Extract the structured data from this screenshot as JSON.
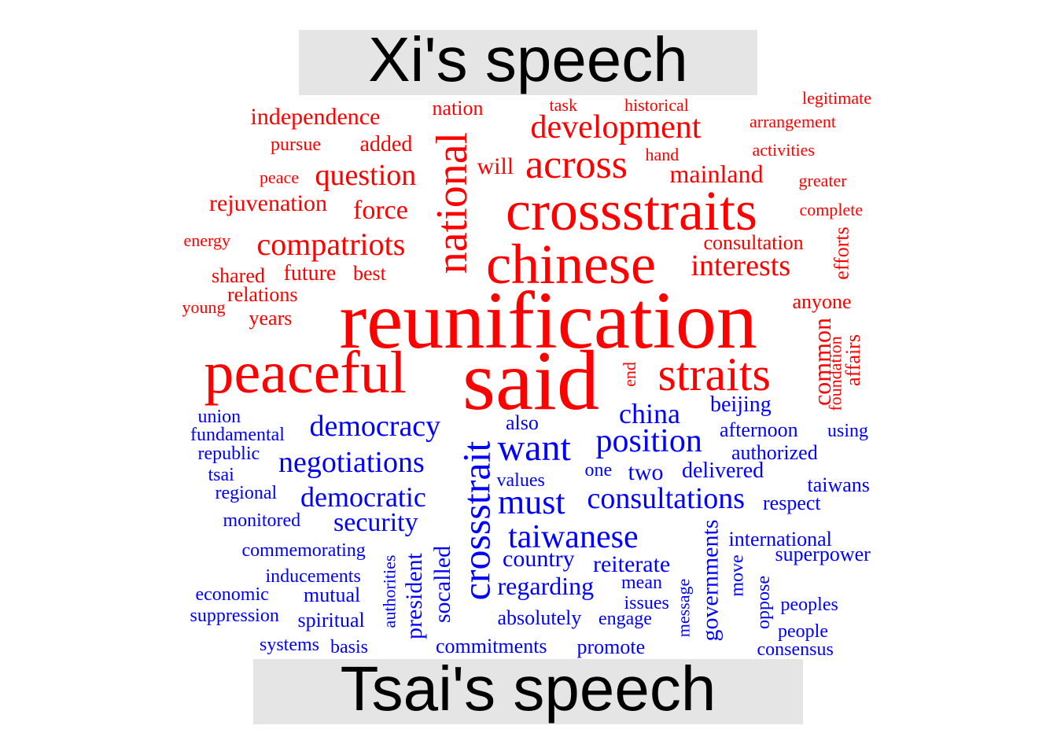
{
  "groups": {
    "top": {
      "label": "Xi's speech",
      "color": "#ff0000"
    },
    "bottom": {
      "label": "Tsai's speech",
      "color": "#0000ff"
    }
  },
  "words": [
    {
      "text": "reunification",
      "group": "top"
    },
    {
      "text": "said",
      "group": "top"
    },
    {
      "text": "crossstraits",
      "group": "top"
    },
    {
      "text": "chinese",
      "group": "top"
    },
    {
      "text": "peaceful",
      "group": "top"
    },
    {
      "text": "straits",
      "group": "top"
    },
    {
      "text": "national",
      "group": "top"
    },
    {
      "text": "across",
      "group": "top"
    },
    {
      "text": "development",
      "group": "top"
    },
    {
      "text": "compatriots",
      "group": "top"
    },
    {
      "text": "question",
      "group": "top"
    },
    {
      "text": "interests",
      "group": "top"
    },
    {
      "text": "mainland",
      "group": "top"
    },
    {
      "text": "force",
      "group": "top"
    },
    {
      "text": "common",
      "group": "top"
    },
    {
      "text": "independence",
      "group": "top"
    },
    {
      "text": "rejuvenation",
      "group": "top"
    },
    {
      "text": "future",
      "group": "top"
    },
    {
      "text": "added",
      "group": "top"
    },
    {
      "text": "will",
      "group": "top"
    },
    {
      "text": "nation",
      "group": "top"
    },
    {
      "text": "consultation",
      "group": "top"
    },
    {
      "text": "shared",
      "group": "top"
    },
    {
      "text": "relations",
      "group": "top"
    },
    {
      "text": "best",
      "group": "top"
    },
    {
      "text": "years",
      "group": "top"
    },
    {
      "text": "pursue",
      "group": "top"
    },
    {
      "text": "anyone",
      "group": "top"
    },
    {
      "text": "efforts",
      "group": "top"
    },
    {
      "text": "affairs",
      "group": "top"
    },
    {
      "text": "foundation",
      "group": "top"
    },
    {
      "text": "end",
      "group": "top"
    },
    {
      "text": "legitimate",
      "group": "top"
    },
    {
      "text": "arrangement",
      "group": "top"
    },
    {
      "text": "activities",
      "group": "top"
    },
    {
      "text": "greater",
      "group": "top"
    },
    {
      "text": "complete",
      "group": "top"
    },
    {
      "text": "historical",
      "group": "top"
    },
    {
      "text": "task",
      "group": "top"
    },
    {
      "text": "hand",
      "group": "top"
    },
    {
      "text": "peace",
      "group": "top"
    },
    {
      "text": "energy",
      "group": "top"
    },
    {
      "text": "young",
      "group": "top"
    },
    {
      "text": "crossstrait",
      "group": "bottom"
    },
    {
      "text": "want",
      "group": "bottom"
    },
    {
      "text": "must",
      "group": "bottom"
    },
    {
      "text": "position",
      "group": "bottom"
    },
    {
      "text": "taiwanese",
      "group": "bottom"
    },
    {
      "text": "consultations",
      "group": "bottom"
    },
    {
      "text": "democracy",
      "group": "bottom"
    },
    {
      "text": "negotiations",
      "group": "bottom"
    },
    {
      "text": "democratic",
      "group": "bottom"
    },
    {
      "text": "china",
      "group": "bottom"
    },
    {
      "text": "security",
      "group": "bottom"
    },
    {
      "text": "governments",
      "group": "bottom"
    },
    {
      "text": "regarding",
      "group": "bottom"
    },
    {
      "text": "president",
      "group": "bottom"
    },
    {
      "text": "socalled",
      "group": "bottom"
    },
    {
      "text": "reiterate",
      "group": "bottom"
    },
    {
      "text": "country",
      "group": "bottom"
    },
    {
      "text": "two",
      "group": "bottom"
    },
    {
      "text": "delivered",
      "group": "bottom"
    },
    {
      "text": "beijing",
      "group": "bottom"
    },
    {
      "text": "afternoon",
      "group": "bottom"
    },
    {
      "text": "authorized",
      "group": "bottom"
    },
    {
      "text": "also",
      "group": "bottom"
    },
    {
      "text": "one",
      "group": "bottom"
    },
    {
      "text": "values",
      "group": "bottom"
    },
    {
      "text": "using",
      "group": "bottom"
    },
    {
      "text": "taiwans",
      "group": "bottom"
    },
    {
      "text": "respect",
      "group": "bottom"
    },
    {
      "text": "international",
      "group": "bottom"
    },
    {
      "text": "superpower",
      "group": "bottom"
    },
    {
      "text": "move",
      "group": "bottom"
    },
    {
      "text": "oppose",
      "group": "bottom"
    },
    {
      "text": "peoples",
      "group": "bottom"
    },
    {
      "text": "people",
      "group": "bottom"
    },
    {
      "text": "consensus",
      "group": "bottom"
    },
    {
      "text": "message",
      "group": "bottom"
    },
    {
      "text": "mean",
      "group": "bottom"
    },
    {
      "text": "issues",
      "group": "bottom"
    },
    {
      "text": "engage",
      "group": "bottom"
    },
    {
      "text": "absolutely",
      "group": "bottom"
    },
    {
      "text": "promote",
      "group": "bottom"
    },
    {
      "text": "commitments",
      "group": "bottom"
    },
    {
      "text": "authorities",
      "group": "bottom"
    },
    {
      "text": "union",
      "group": "bottom"
    },
    {
      "text": "fundamental",
      "group": "bottom"
    },
    {
      "text": "republic",
      "group": "bottom"
    },
    {
      "text": "tsai",
      "group": "bottom"
    },
    {
      "text": "regional",
      "group": "bottom"
    },
    {
      "text": "monitored",
      "group": "bottom"
    },
    {
      "text": "commemorating",
      "group": "bottom"
    },
    {
      "text": "inducements",
      "group": "bottom"
    },
    {
      "text": "economic",
      "group": "bottom"
    },
    {
      "text": "mutual",
      "group": "bottom"
    },
    {
      "text": "suppression",
      "group": "bottom"
    },
    {
      "text": "spiritual",
      "group": "bottom"
    },
    {
      "text": "systems",
      "group": "bottom"
    },
    {
      "text": "basis",
      "group": "bottom"
    }
  ]
}
